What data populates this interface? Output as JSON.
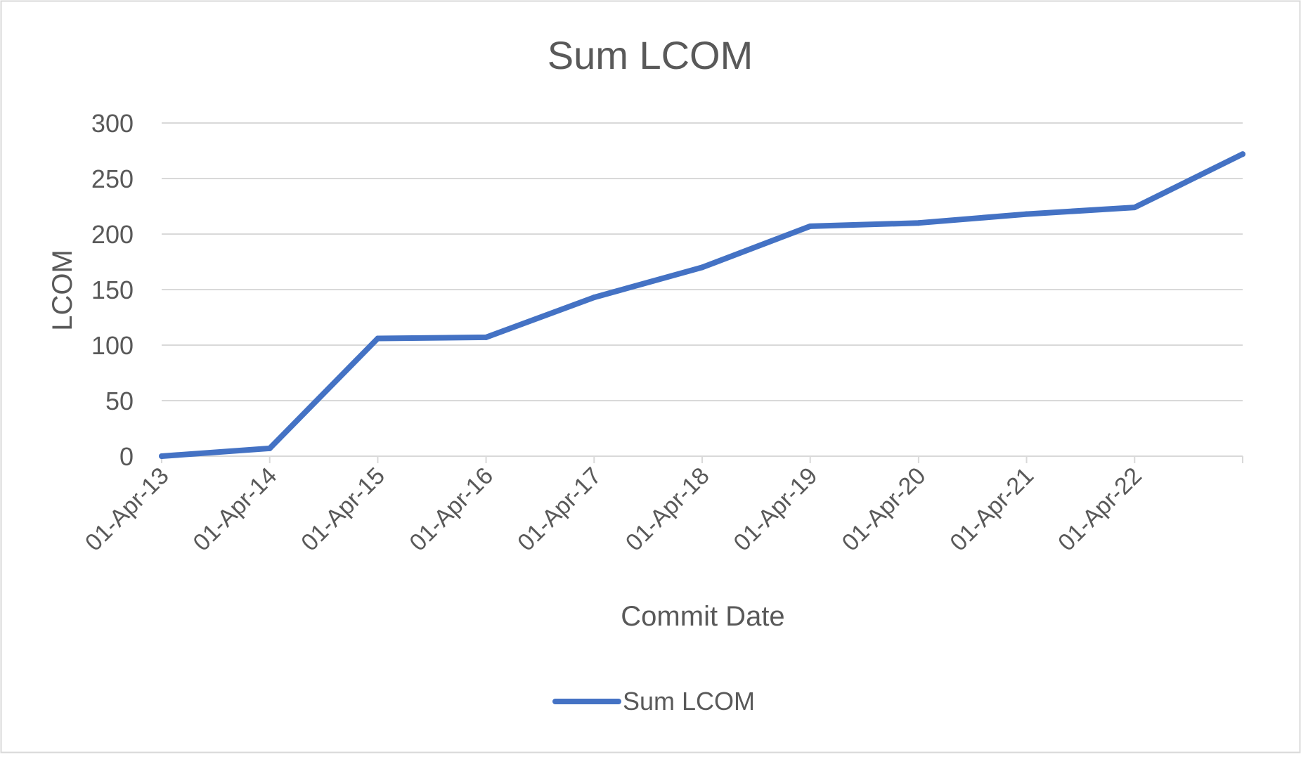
{
  "chart_data": {
    "type": "line",
    "title": "Sum LCOM",
    "xlabel": "Commit Date",
    "ylabel": "LCOM",
    "ylim": [
      0,
      300
    ],
    "yticks": [
      0,
      50,
      100,
      150,
      200,
      250,
      300
    ],
    "xlim": [
      "2013-04-01",
      "2023-04-01"
    ],
    "x_tick_dates": [
      "2013-04-01",
      "2014-04-01",
      "2015-04-01",
      "2016-04-01",
      "2017-04-01",
      "2018-04-01",
      "2019-04-01",
      "2020-04-01",
      "2021-04-01",
      "2022-04-01",
      "2023-04-01"
    ],
    "x_tick_labels": [
      "01-Apr-13",
      "01-Apr-14",
      "01-Apr-15",
      "01-Apr-16",
      "01-Apr-17",
      "01-Apr-18",
      "01-Apr-19",
      "01-Apr-20",
      "01-Apr-21",
      "01-Apr-22",
      ""
    ],
    "grid": "horizontal",
    "legend": "bottom",
    "line_color": "#4472C4",
    "gridline_color": "#D9D9D9",
    "series": [
      {
        "name": "Sum LCOM",
        "x": [
          "2013-04-01",
          "2014-04-01",
          "2015-04-01",
          "2016-04-01",
          "2017-04-01",
          "2018-04-01",
          "2019-04-01",
          "2020-04-01",
          "2021-04-01",
          "2022-04-01",
          "2023-04-01"
        ],
        "y": [
          0,
          7,
          106,
          107,
          143,
          170,
          207,
          210,
          218,
          224,
          272
        ]
      }
    ]
  }
}
